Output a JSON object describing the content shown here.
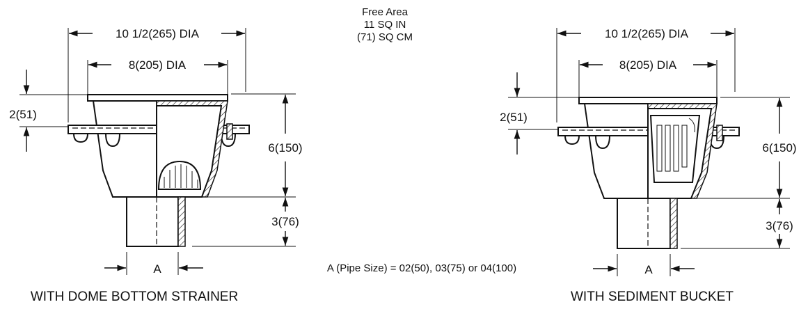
{
  "free_area": {
    "line1": "Free Area",
    "line2": "11 SQ IN",
    "line3": "(71) SQ CM"
  },
  "pipe_size_note": "A (Pipe Size) = 02(50), 03(75) or 04(100)",
  "left_drain": {
    "outer_diameter": "10 1/2(265) DIA",
    "inner_diameter": "8(205) DIA",
    "flange_height": "2(51)",
    "body_height": "6(150)",
    "outlet_height": "3(76)",
    "pipe_label": "A",
    "caption": "WITH DOME BOTTOM STRAINER"
  },
  "right_drain": {
    "outer_diameter": "10 1/2(265) DIA",
    "inner_diameter": "8(205) DIA",
    "flange_height": "2(51)",
    "body_height": "6(150)",
    "outlet_height": "3(76)",
    "pipe_label": "A",
    "caption": "WITH SEDIMENT BUCKET"
  }
}
